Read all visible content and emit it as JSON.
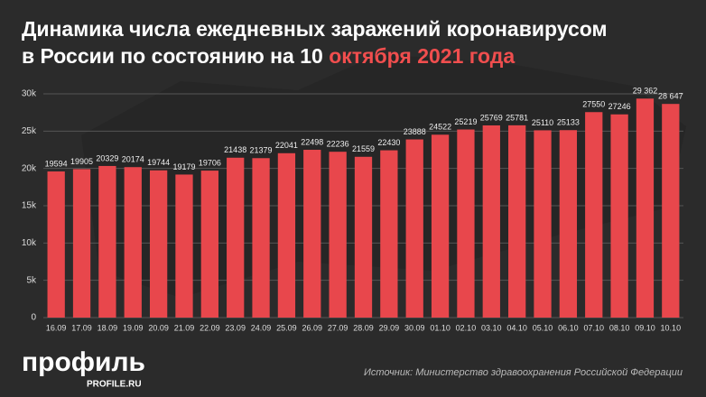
{
  "chart_data": {
    "type": "bar",
    "title": "Динамика числа ежедневных заражений коронавирусом",
    "title_line2": "в России по состоянию на 10",
    "title_highlight": "октября 2021 года",
    "categories": [
      "16.09",
      "17.09",
      "18.09",
      "19.09",
      "20.09",
      "21.09",
      "22.09",
      "23.09",
      "24.09",
      "25.09",
      "26.09",
      "27.09",
      "28.09",
      "29.09",
      "30.09",
      "01.10",
      "02.10",
      "03.10",
      "04.10",
      "05.10",
      "06.10",
      "07.10",
      "08.10",
      "09.10",
      "10.10"
    ],
    "values": [
      19594,
      19905,
      20329,
      20174,
      19744,
      19179,
      19706,
      21438,
      21379,
      22041,
      22498,
      22236,
      21559,
      22430,
      23888,
      24522,
      25219,
      25769,
      25781,
      25110,
      25133,
      27550,
      27246,
      29362,
      28647
    ],
    "value_labels": [
      "19594",
      "19905",
      "20329",
      "20174",
      "19744",
      "19179",
      "19706",
      "21438",
      "21379",
      "22041",
      "22498",
      "22236",
      "21559",
      "22430",
      "23888",
      "24522",
      "25219",
      "25769",
      "25781",
      "25110",
      "25133",
      "27550",
      "27246",
      "29 362",
      "28 647"
    ],
    "color": "#e8474c",
    "ylim": [
      0,
      30000
    ],
    "yticks": [
      0,
      {
        "value": 5000,
        "label": "5k"
      },
      {
        "value": 10000,
        "label": "10k"
      },
      {
        "value": 15000,
        "label": "15k"
      },
      {
        "value": 20000,
        "label": "20k"
      },
      {
        "value": 25000,
        "label": "25k"
      },
      {
        "value": 30000,
        "label": "30k"
      }
    ],
    "grid": true,
    "logo": "профиль",
    "logo_sub": "PROFILE.RU",
    "source": "Источник: Министерство здравоохранения Российской Федерации"
  }
}
